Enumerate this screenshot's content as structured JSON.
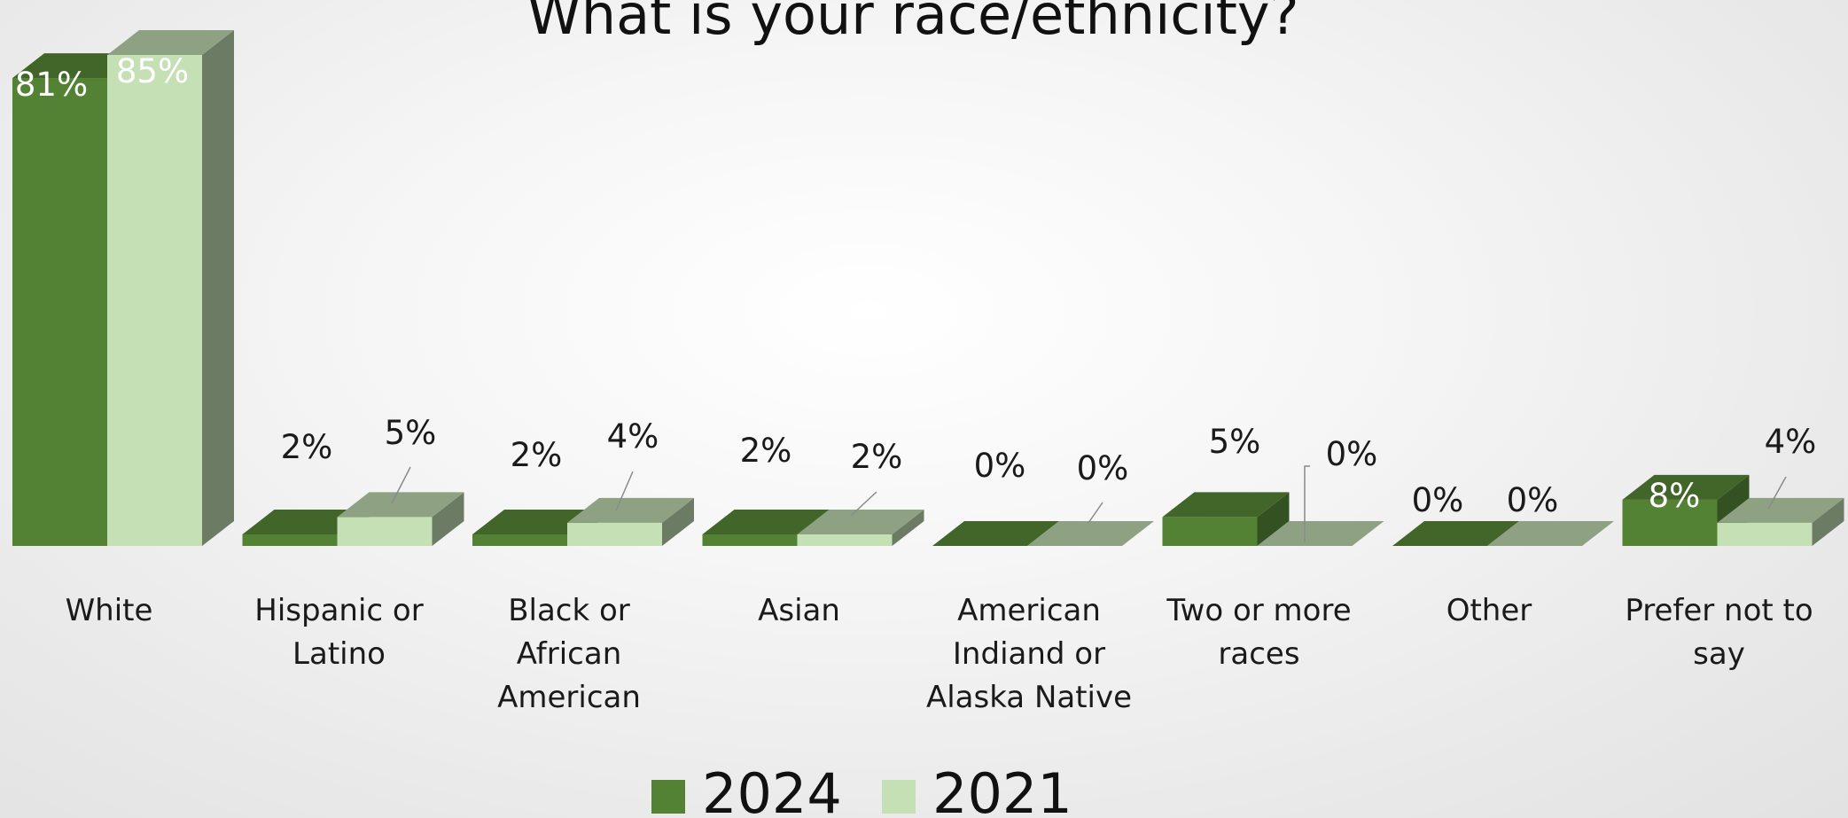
{
  "chart_data": {
    "type": "bar",
    "title": "What is your race/ethnicity?",
    "categories": [
      [
        "White"
      ],
      [
        "Hispanic or",
        "Latino"
      ],
      [
        "Black or",
        "African",
        "American"
      ],
      [
        "Asian"
      ],
      [
        "American",
        "Indiand or",
        "Alaska Native"
      ],
      [
        "Two or more",
        "races"
      ],
      [
        "Other"
      ],
      [
        "Prefer not to",
        "say"
      ]
    ],
    "series": [
      {
        "name": "2024",
        "values": [
          81,
          2,
          2,
          2,
          0,
          5,
          0,
          8
        ],
        "labels": [
          "81%",
          "2%",
          "2%",
          "2%",
          "0%",
          "5%",
          "0%",
          "8%"
        ],
        "color": "#548235"
      },
      {
        "name": "2021",
        "values": [
          85,
          5,
          4,
          2,
          0,
          0,
          0,
          4
        ],
        "labels": [
          "85%",
          "5%",
          "4%",
          "2%",
          "0%",
          "0%",
          "0%",
          "4%"
        ],
        "color": "#c5e0b4"
      }
    ],
    "ylim": [
      0,
      85
    ],
    "xlabel": "",
    "ylabel": "",
    "grid": false,
    "legend": "bottom",
    "three_d": true
  }
}
